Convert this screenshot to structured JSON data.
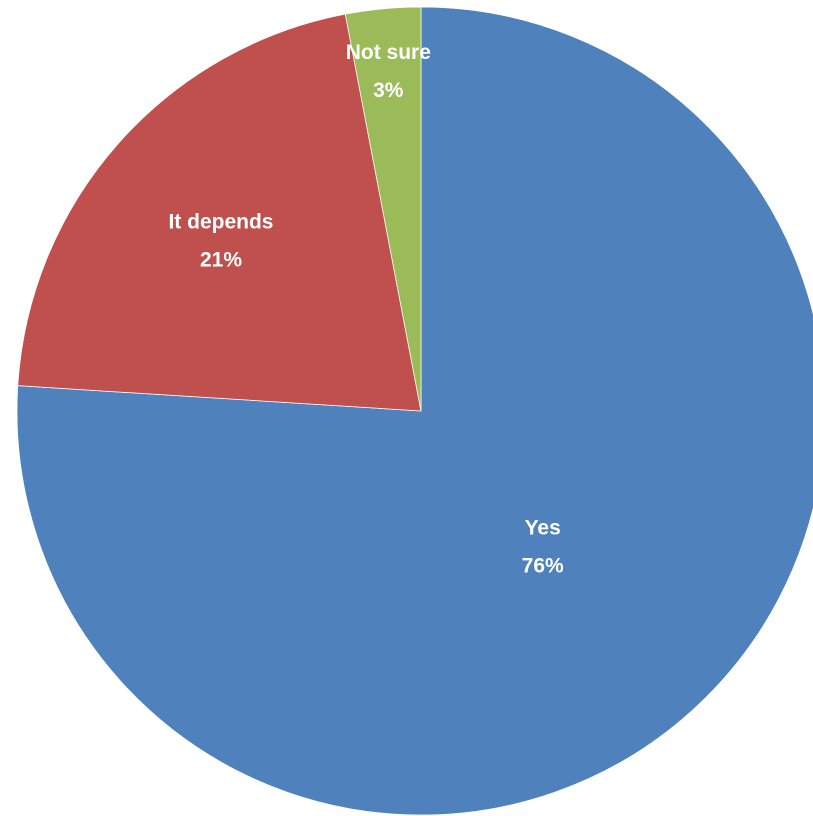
{
  "chart_data": {
    "type": "pie",
    "title": "",
    "start_angle_deg": 0,
    "direction": "clockwise",
    "slices": [
      {
        "label": "Yes",
        "value": 76,
        "display": "76%",
        "color": "#4f81bd"
      },
      {
        "label": "It depends",
        "value": 21,
        "display": "21%",
        "color": "#c0504d"
      },
      {
        "label": "Not sure",
        "value": 3,
        "display": "3%",
        "color": "#9bbb59"
      }
    ],
    "legend": "none"
  }
}
